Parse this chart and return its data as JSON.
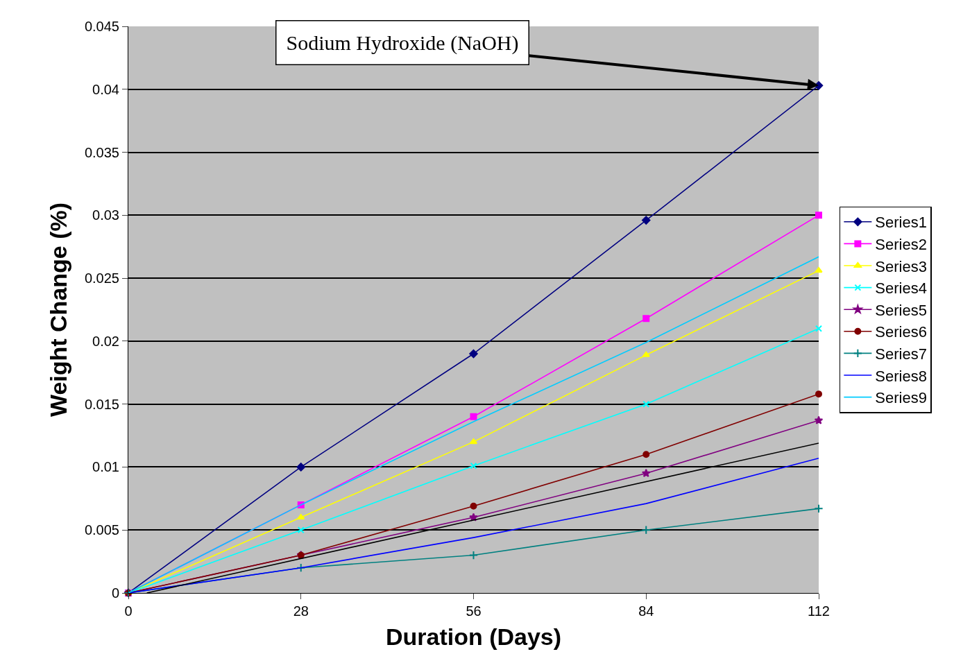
{
  "chart_data": {
    "type": "line",
    "xlabel": "Duration (Days)",
    "ylabel": "Weight Change (%)",
    "x": [
      0,
      28,
      56,
      84,
      112
    ],
    "xlim": [
      0,
      112
    ],
    "xticks": [
      0,
      28,
      56,
      84,
      112
    ],
    "ylim": [
      0,
      0.045
    ],
    "yticks": [
      0,
      0.005,
      0.01,
      0.015,
      0.02,
      0.025,
      0.03,
      0.035,
      0.04,
      0.045
    ],
    "grid": "y",
    "legend": "right",
    "line_style": "solid",
    "series": [
      {
        "name": "Series1",
        "color": "#000080",
        "marker": "diamond",
        "values": [
          0,
          0.01,
          0.019,
          0.0296,
          0.0403
        ]
      },
      {
        "name": "Series2",
        "color": "#ff00ff",
        "marker": "square",
        "values": [
          0,
          0.007,
          0.014,
          0.0218,
          0.03
        ]
      },
      {
        "name": "Series3",
        "color": "#ffff00",
        "marker": "triangle",
        "values": [
          0,
          0.006,
          0.012,
          0.0189,
          0.0256
        ]
      },
      {
        "name": "Series4",
        "color": "#00ffff",
        "marker": "x",
        "values": [
          0,
          0.005,
          0.0101,
          0.015,
          0.021
        ]
      },
      {
        "name": "Series5",
        "color": "#800080",
        "marker": "star",
        "values": [
          0,
          0.003,
          0.006,
          0.0095,
          0.0137
        ]
      },
      {
        "name": "Series6",
        "color": "#800000",
        "marker": "circle",
        "values": [
          0,
          0.003,
          0.0069,
          0.011,
          0.0158
        ]
      },
      {
        "name": "Series7",
        "color": "#008080",
        "marker": "cross",
        "values": [
          0,
          0.002,
          0.003,
          0.005,
          0.0067
        ]
      },
      {
        "name": "Series8",
        "color": "#0000ff",
        "marker": "none",
        "values": [
          0,
          0.002,
          0.0044,
          0.0071,
          0.0107
        ]
      },
      {
        "name": "Series9",
        "color": "#00ccff",
        "marker": "none",
        "values": [
          0,
          0.007,
          0.0136,
          0.0199,
          0.0267
        ]
      },
      {
        "color": "#000000",
        "marker": "none",
        "x": [
          3,
          112
        ],
        "values": [
          0,
          0.0119
        ]
      }
    ],
    "annotations": [
      {
        "text": "Sodium Hydroxide (NaOH)",
        "x": 112,
        "y": 0.0403
      }
    ]
  }
}
